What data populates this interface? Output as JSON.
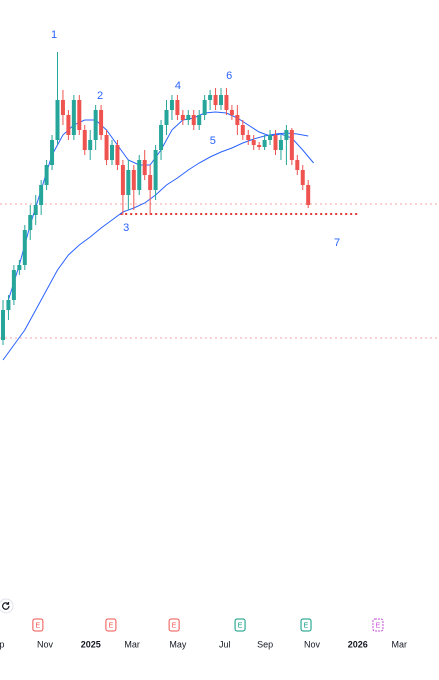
{
  "chart_data": {
    "type": "candlestick",
    "xlim": [
      -0.55,
      80
    ],
    "ylim": [
      0,
      600
    ],
    "up_color": "#26a69a",
    "down_color": "#ef5350",
    "x": [
      0,
      1,
      2,
      3,
      4,
      5,
      6,
      7,
      8,
      9,
      10,
      11,
      12,
      13,
      14,
      15,
      16,
      17,
      18,
      19,
      20,
      21,
      22,
      23,
      24,
      25,
      26,
      27,
      28,
      29,
      30,
      31,
      32,
      33,
      34,
      35,
      36,
      37,
      38,
      39,
      40,
      41,
      42,
      43,
      44,
      45,
      46,
      47,
      48,
      49,
      50,
      51,
      52,
      53,
      54,
      55,
      56
    ],
    "open": [
      260,
      290,
      300,
      330,
      335,
      370,
      385,
      395,
      415,
      435,
      460,
      500,
      485,
      465,
      500,
      470,
      450,
      460,
      490,
      465,
      440,
      455,
      435,
      405,
      430,
      410,
      440,
      425,
      410,
      450,
      475,
      490,
      500,
      485,
      480,
      485,
      475,
      485,
      500,
      505,
      495,
      505,
      490,
      485,
      475,
      465,
      460,
      455,
      453,
      460,
      465,
      450,
      460,
      470,
      440,
      430,
      415
    ],
    "high": [
      300,
      305,
      335,
      340,
      375,
      395,
      405,
      420,
      440,
      465,
      548,
      510,
      490,
      505,
      505,
      475,
      470,
      495,
      495,
      470,
      460,
      460,
      440,
      440,
      435,
      445,
      450,
      435,
      455,
      480,
      500,
      505,
      505,
      490,
      490,
      490,
      490,
      505,
      510,
      512,
      512,
      512,
      495,
      495,
      480,
      470,
      465,
      458,
      465,
      470,
      470,
      465,
      475,
      472,
      445,
      435,
      420
    ],
    "low": [
      255,
      280,
      295,
      325,
      330,
      360,
      375,
      385,
      410,
      430,
      455,
      475,
      460,
      460,
      465,
      445,
      440,
      450,
      460,
      435,
      435,
      430,
      385,
      390,
      390,
      405,
      420,
      385,
      400,
      440,
      465,
      480,
      480,
      475,
      475,
      470,
      470,
      480,
      490,
      490,
      490,
      485,
      480,
      465,
      460,
      455,
      450,
      450,
      450,
      455,
      445,
      440,
      435,
      435,
      425,
      410,
      392
    ],
    "close": [
      290,
      300,
      330,
      335,
      370,
      385,
      395,
      415,
      435,
      460,
      500,
      485,
      465,
      500,
      470,
      450,
      460,
      490,
      465,
      440,
      455,
      435,
      405,
      430,
      410,
      440,
      425,
      410,
      450,
      475,
      490,
      500,
      485,
      480,
      485,
      475,
      485,
      500,
      505,
      495,
      505,
      490,
      485,
      475,
      465,
      460,
      455,
      453,
      460,
      465,
      450,
      460,
      470,
      440,
      430,
      415,
      395
    ],
    "series": [
      {
        "color": "#2962ff",
        "x": [
          1,
          3,
          5,
          7,
          9,
          11,
          13,
          15,
          17,
          19,
          21,
          23,
          25,
          27,
          29,
          31,
          33,
          35,
          37,
          39,
          41,
          43,
          45,
          47,
          49,
          51,
          53,
          55,
          57
        ],
        "values": [
          300,
          335,
          375,
          410,
          445,
          465,
          475,
          480,
          480,
          470,
          455,
          440,
          435,
          435,
          450,
          470,
          480,
          482,
          487,
          488,
          487,
          482,
          475,
          468,
          464,
          466,
          462,
          450,
          437
        ]
      },
      {
        "color": "#2962ff",
        "x": [
          0,
          2,
          4,
          6,
          8,
          10,
          12,
          14,
          16,
          18,
          20,
          22,
          24,
          26,
          28,
          30,
          32,
          34,
          36,
          38,
          40,
          42,
          44,
          46,
          48,
          50,
          52,
          54,
          56
        ],
        "values": [
          240,
          255,
          270,
          290,
          310,
          330,
          345,
          355,
          363,
          372,
          380,
          388,
          392,
          397,
          405,
          415,
          422,
          430,
          437,
          443,
          448,
          452,
          457,
          461,
          464,
          466,
          467,
          466,
          464
        ]
      }
    ],
    "levels": [
      {
        "value": 396,
        "color": "#f4a6a6",
        "style": "dashed"
      },
      {
        "value": 262,
        "color": "#f4a6a6",
        "style": "dashed"
      },
      {
        "value": 386,
        "color": "#e53935",
        "style": "dotted",
        "from": 21.5,
        "to": 65
      }
    ],
    "annotations": [
      {
        "text": "1",
        "x": 9.36,
        "y": 565
      },
      {
        "text": "2",
        "x": 17.8,
        "y": 504
      },
      {
        "text": "3",
        "x": 22.6,
        "y": 372
      },
      {
        "text": "4",
        "x": 32.1,
        "y": 514
      },
      {
        "text": "5",
        "x": 38.5,
        "y": 459
      },
      {
        "text": "6",
        "x": 41.5,
        "y": 524
      },
      {
        "text": "7",
        "x": 61.3,
        "y": 357
      }
    ],
    "annotation_color": "#2962ff",
    "events": [
      {
        "label": "E",
        "x": 6.4,
        "color": "#ef5350"
      },
      {
        "label": "E",
        "x": 19.8,
        "color": "#ef5350"
      },
      {
        "label": "E",
        "x": 31.4,
        "color": "#ef5350"
      },
      {
        "label": "E",
        "x": 43.5,
        "color": "#089981"
      },
      {
        "label": "E",
        "x": 55.6,
        "color": "#089981"
      },
      {
        "label": "E",
        "x": 68.8,
        "color": "#c64bd8",
        "style": "dashed"
      }
    ],
    "xticks": [
      {
        "value": -0.2,
        "label": "p"
      },
      {
        "value": 7.7,
        "label": "Nov"
      },
      {
        "value": 16.1,
        "label": "2025"
      },
      {
        "value": 23.7,
        "label": "Mar"
      },
      {
        "value": 32.1,
        "label": "May"
      },
      {
        "value": 40.7,
        "label": "Jul"
      },
      {
        "value": 48.1,
        "label": "Sep"
      },
      {
        "value": 56.7,
        "label": "Nov"
      },
      {
        "value": 65.1,
        "label": "2026"
      },
      {
        "value": 72.7,
        "label": "Mar"
      }
    ]
  }
}
